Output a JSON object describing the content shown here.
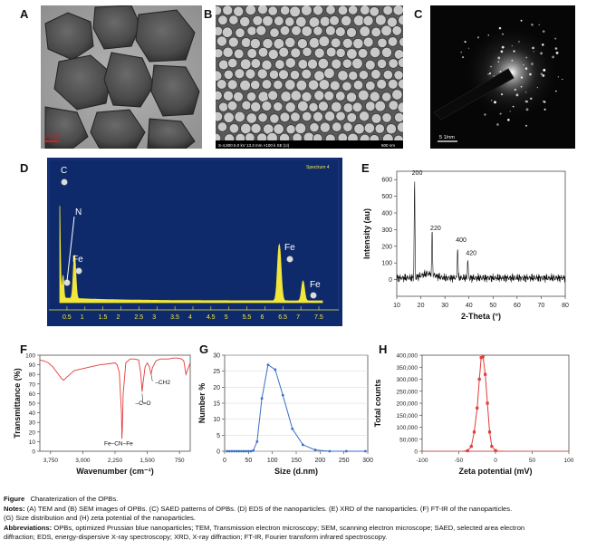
{
  "panels": {
    "A": {
      "letter": "A",
      "scale": "20 nm"
    },
    "B": {
      "letter": "B",
      "info_left": "S-4,800 5.0 kV 13.3 mm ×100 k SE (U)",
      "info_right": "500 nm"
    },
    "C": {
      "letter": "C",
      "scale": "5 1/nm"
    },
    "D": {
      "letter": "D",
      "spectrum_label": "Spectrum 4",
      "peak_labels": [
        "C",
        "N",
        "Fe",
        "Fe",
        "Fe"
      ],
      "xticks": [
        "0.5",
        "1",
        "1.5",
        "2",
        "2.5",
        "3",
        "3.5",
        "4",
        "4.5",
        "5",
        "5.5",
        "6",
        "6.5",
        "7",
        "7.5"
      ]
    },
    "E": {
      "letter": "E",
      "peak_labels": [
        "200",
        "220",
        "400",
        "420"
      ]
    },
    "F": {
      "letter": "F",
      "annotations": [
        "Fe–CN–Fe",
        "–C=O",
        "–CH2"
      ]
    },
    "G": {
      "letter": "G"
    },
    "H": {
      "letter": "H"
    }
  },
  "chart_data": [
    {
      "id": "E",
      "type": "line",
      "title": "",
      "xlabel": "2-Theta (°)",
      "ylabel": "Intensity (au)",
      "xlim": [
        10,
        80
      ],
      "ylim": [
        -100,
        650
      ],
      "xticks": [
        10,
        20,
        30,
        40,
        50,
        60,
        70,
        80
      ],
      "yticks": [
        0,
        100,
        200,
        300,
        400,
        500,
        600
      ],
      "peaks": [
        {
          "x": 17.4,
          "y": 600,
          "label": "200"
        },
        {
          "x": 24.7,
          "y": 270,
          "label": "220"
        },
        {
          "x": 35.3,
          "y": 200,
          "label": "400"
        },
        {
          "x": 39.5,
          "y": 120,
          "label": "420"
        }
      ],
      "baseline": 10
    },
    {
      "id": "F",
      "type": "line",
      "title": "",
      "xlabel": "Wavenumber (cm⁻¹)",
      "ylabel": "Transmittance (%)",
      "xlim": [
        4000,
        500
      ],
      "ylim": [
        0,
        100
      ],
      "xtick_labels": [
        "3,750",
        "3,000",
        "2,250",
        "1,500",
        "750"
      ],
      "xticks": [
        3750,
        3000,
        2250,
        1500,
        750
      ],
      "yticks": [
        0,
        10,
        20,
        30,
        40,
        50,
        60,
        70,
        80,
        90,
        100
      ],
      "x": [
        4000,
        3900,
        3800,
        3700,
        3600,
        3500,
        3450,
        3400,
        3300,
        3200,
        3000,
        2800,
        2600,
        2400,
        2250,
        2200,
        2150,
        2100,
        2090,
        2080,
        2060,
        2000,
        1900,
        1800,
        1700,
        1650,
        1620,
        1600,
        1550,
        1500,
        1450,
        1410,
        1380,
        1300,
        1200,
        1100,
        1000,
        900,
        800,
        700,
        650,
        600,
        550,
        500
      ],
      "y": [
        95,
        94,
        92,
        88,
        82,
        76,
        74,
        76,
        80,
        84,
        86,
        88,
        90,
        91,
        92,
        90,
        82,
        40,
        13,
        25,
        60,
        92,
        96,
        96,
        95,
        80,
        62,
        70,
        88,
        92,
        88,
        80,
        87,
        94,
        96,
        96,
        96,
        97,
        97,
        96,
        94,
        80,
        86,
        92
      ]
    },
    {
      "id": "G",
      "type": "line",
      "title": "",
      "xlabel": "Size (d.nm)",
      "ylabel": "Number %",
      "xlim": [
        0,
        300
      ],
      "ylim": [
        0,
        30
      ],
      "xticks": [
        0,
        50,
        100,
        150,
        200,
        250,
        300
      ],
      "yticks": [
        0,
        5,
        10,
        15,
        20,
        25,
        30
      ],
      "x": [
        5,
        10,
        15,
        20,
        25,
        30,
        35,
        40,
        45,
        50,
        55,
        60,
        68,
        78,
        91,
        106,
        122,
        142,
        164,
        190,
        220,
        255,
        295
      ],
      "y": [
        0,
        0,
        0,
        0,
        0,
        0,
        0,
        0,
        0,
        0,
        0,
        0.2,
        3,
        16.5,
        27,
        25.5,
        17.5,
        7,
        2,
        0.4,
        0,
        0,
        0
      ]
    },
    {
      "id": "H",
      "type": "line",
      "title": "",
      "xlabel": "Zeta potential (mV)",
      "ylabel": "Total counts",
      "xlim": [
        -100,
        100
      ],
      "ylim": [
        0,
        400000
      ],
      "xticks": [
        -100,
        -50,
        0,
        50,
        100
      ],
      "yticks": [
        0,
        50000,
        100000,
        150000,
        200000,
        250000,
        300000,
        350000,
        400000
      ],
      "ytick_labels": [
        "0",
        "50,000",
        "100,000",
        "150,000",
        "200,000",
        "250,000",
        "300,000",
        "350,000",
        "400,000"
      ],
      "x": [
        -45,
        -38,
        -33,
        -29,
        -25,
        -22,
        -19.5,
        -17,
        -14,
        -11,
        -8,
        -5,
        0,
        5,
        12
      ],
      "y": [
        0,
        2000,
        20000,
        80000,
        180000,
        300000,
        390000,
        395000,
        320000,
        200000,
        80000,
        20000,
        3000,
        0,
        0
      ],
      "baseline_color": "#e05050"
    }
  ],
  "caption": {
    "figure_label": "Figure",
    "title": "Charaterization of the OPBs.",
    "notes_label": "Notes:",
    "notes": "(A) TEM and (B) SEM images of OPBs. (C) SAED patterns of OPBs. (D) EDS of the nanoparticles. (E) XRD of the nanoparticles. (F) FT-IR of the nanoparticles.",
    "notes_line2": "(G) Size distribution and (H) zeta potential of the nanoparticles.",
    "abbrev_label": "Abbreviations:",
    "abbrev": "OPBs, optimized Prussian blue nanoparticles; TEM, Transmission electron microscopy; SEM, scanning electron microscope; SAED, selected area electron",
    "abbrev_line2": "diffraction; EDS, energy-dispersive X-ray spectroscopy; XRD, X-ray diffraction; FT-IR, Fourier transform infrared spectroscopy."
  },
  "colors": {
    "eds_bg": "#0f2a6b",
    "eds_fg": "#f1e63a",
    "ftir": "#e03c3c",
    "dls": "#3a6fc7",
    "zeta": "#e03c3c"
  }
}
